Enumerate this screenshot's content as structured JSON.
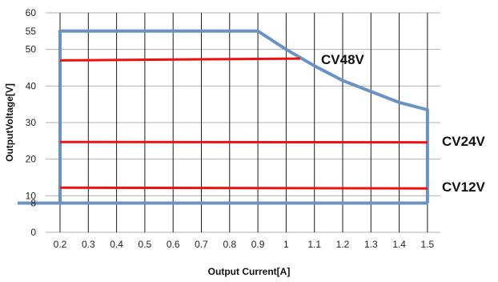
{
  "chart_data": {
    "type": "line",
    "title": "",
    "xlabel": "Output Current[A]",
    "ylabel": "OutputVoltage[V]",
    "xlim": [
      0.2,
      1.5
    ],
    "ylim": [
      0,
      60
    ],
    "x_ticks": [
      "0.2",
      "0.3",
      "0.4",
      "0.5",
      "0.6",
      "0.7",
      "0.8",
      "0.9",
      "1",
      "1.1",
      "1.2",
      "1.3",
      "1.4",
      "1.5"
    ],
    "y_ticks": [
      "0",
      "8",
      "10",
      "20",
      "30",
      "40",
      "50",
      "55",
      "60"
    ],
    "grid": true,
    "envelope": {
      "color": "#6b93c2",
      "points": [
        [
          0.2,
          8
        ],
        [
          0.2,
          55
        ],
        [
          0.9,
          55
        ],
        [
          1.0,
          50
        ],
        [
          1.1,
          45.5
        ],
        [
          1.2,
          41.5
        ],
        [
          1.3,
          38.5
        ],
        [
          1.4,
          35.5
        ],
        [
          1.5,
          33.5
        ],
        [
          1.5,
          8
        ]
      ],
      "baseline": [
        [
          0.05,
          8
        ],
        [
          1.5,
          8
        ]
      ]
    },
    "series": [
      {
        "name": "CV48V",
        "color": "#ee1111",
        "x": [
          0.2,
          1.05
        ],
        "y": [
          47,
          47.5
        ]
      },
      {
        "name": "CV24V",
        "color": "#ee1111",
        "x": [
          0.2,
          1.5
        ],
        "y": [
          24.7,
          24.6
        ]
      },
      {
        "name": "CV12V",
        "color": "#ee1111",
        "x": [
          0.2,
          1.5
        ],
        "y": [
          12.2,
          12.0
        ]
      }
    ]
  }
}
